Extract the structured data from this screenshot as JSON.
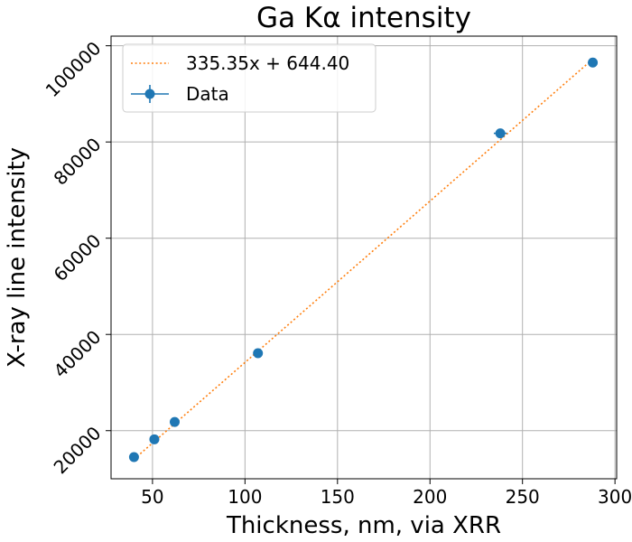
{
  "chart_data": {
    "type": "scatter",
    "title": "Ga Kα intensity",
    "xlabel": "Thickness, nm, via XRR",
    "ylabel": "X-ray line intensity",
    "xlim": [
      27.6,
      300.9
    ],
    "ylim": [
      10000,
      102000
    ],
    "xticks": [
      50,
      100,
      150,
      200,
      250,
      300
    ],
    "yticks": [
      20000,
      40000,
      60000,
      80000,
      100000
    ],
    "grid": true,
    "legend_position": "top-left",
    "series": [
      {
        "name": "Data",
        "kind": "scatter-errorbar",
        "color": "#1f77b4",
        "x": [
          40,
          51,
          62,
          107,
          238,
          288
        ],
        "y": [
          14500,
          18200,
          21800,
          36100,
          81800,
          96500
        ],
        "xerr": [
          0,
          0,
          0,
          0,
          3.5,
          0
        ]
      },
      {
        "name": "335.35x + 644.40",
        "kind": "fit-line",
        "color": "#ff7f0e",
        "slope": 335.35,
        "intercept": 644.4,
        "x_range": [
          40,
          288
        ]
      }
    ]
  }
}
